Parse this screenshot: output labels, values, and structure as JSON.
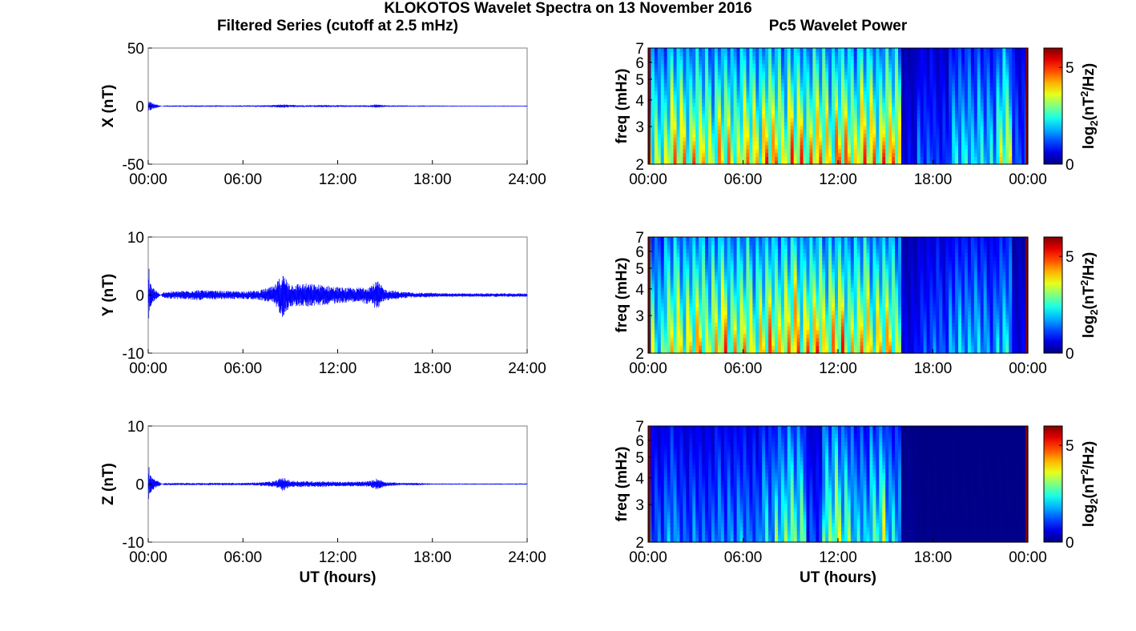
{
  "figure": {
    "title": "KLOKOTOS Wavelet Spectra on 13 November 2016",
    "left_column_title": "Filtered Series (cutoff at 2.5 mHz)",
    "right_column_title": "Pc5 Wavelet Power"
  },
  "colors": {
    "trace": "#0000ff",
    "axes": "#000000",
    "frame": "#7f7f7f",
    "colormap": "jet",
    "colormap_stops": [
      "#00008f",
      "#0000ff",
      "#00ffff",
      "#ffff00",
      "#ff0000",
      "#800000"
    ]
  },
  "chart_data": [
    {
      "type": "line",
      "component": "X",
      "ylabel": "X (nT)",
      "xlabel": "",
      "xlim": [
        0,
        24
      ],
      "ylim": [
        -50,
        50
      ],
      "xticks": [
        0,
        6,
        12,
        18,
        24
      ],
      "xtick_labels": [
        "00:00",
        "06:00",
        "12:00",
        "18:00",
        "24:00"
      ],
      "yticks": [
        -50,
        0,
        50
      ],
      "ytick_labels": [
        "-50",
        "0",
        "50"
      ],
      "grid": false,
      "series": [
        {
          "x": [
            0,
            0.05,
            0.1,
            1,
            2,
            3,
            4,
            5,
            6,
            7,
            8,
            8.5,
            9,
            10,
            11,
            12,
            13,
            14,
            14.5,
            15,
            16,
            17,
            18,
            19,
            20,
            21,
            22,
            23,
            24
          ],
          "y": [
            0,
            4.5,
            -3.5,
            0.5,
            0.6,
            0.6,
            0.6,
            0.6,
            0.6,
            0.7,
            0.9,
            1.5,
            1.0,
            0.8,
            1.0,
            0.8,
            0.7,
            0.8,
            1.5,
            0.7,
            0.6,
            0.5,
            0.5,
            0.4,
            0.4,
            0.4,
            0.4,
            0.4,
            0.4
          ]
        }
      ]
    },
    {
      "type": "heatmap",
      "component": "X",
      "ylabel": "freq (mHz)",
      "xlabel": "",
      "xlim": [
        0,
        24
      ],
      "ylim": [
        2,
        7
      ],
      "yscale": "log",
      "xticks": [
        0,
        6,
        12,
        18,
        24
      ],
      "xtick_labels": [
        "00:00",
        "06:00",
        "12:00",
        "18:00",
        "00:00"
      ],
      "yticks": [
        2,
        3,
        4,
        5,
        6,
        7
      ],
      "ytick_labels": [
        "2",
        "3",
        "4",
        "5",
        "6",
        "7"
      ],
      "colorbar": {
        "label": "log2(nT^2/Hz)",
        "label_base": "log",
        "label_sub": "2",
        "label_rest": "(nT",
        "label_sup": "2",
        "label_end": "/Hz)",
        "ticks": [
          0,
          5
        ],
        "range": [
          0,
          6
        ]
      },
      "power_max_by_hour": [
        4.5,
        5.6,
        5.6,
        5.3,
        5.4,
        5.5,
        5.6,
        6.0,
        6.0,
        5.9,
        6.0,
        6.0,
        6.0,
        6.0,
        5.9,
        6.0,
        1.0,
        2.0,
        1.5,
        3.0,
        3.4,
        3.0,
        4.8,
        2.0
      ]
    },
    {
      "type": "line",
      "component": "Y",
      "ylabel": "Y (nT)",
      "xlabel": "",
      "xlim": [
        0,
        24
      ],
      "ylim": [
        -10,
        10
      ],
      "xticks": [
        0,
        6,
        12,
        18,
        24
      ],
      "xtick_labels": [
        "00:00",
        "06:00",
        "12:00",
        "18:00",
        "24:00"
      ],
      "yticks": [
        -10,
        0,
        10
      ],
      "ytick_labels": [
        "-10",
        "0",
        "10"
      ],
      "grid": false,
      "series": [
        {
          "x": [
            0,
            0.05,
            0.1,
            1,
            2,
            3,
            4,
            5,
            6,
            7,
            8,
            8.5,
            9,
            10,
            11,
            12,
            13,
            14,
            14.5,
            15,
            16,
            17,
            18,
            19,
            20,
            21,
            22,
            23,
            24
          ],
          "y": [
            0,
            5.0,
            -2.0,
            0.6,
            0.7,
            0.9,
            0.8,
            0.7,
            0.7,
            0.8,
            1.6,
            3.8,
            2.0,
            2.0,
            1.8,
            1.4,
            1.2,
            1.6,
            2.5,
            1.0,
            0.6,
            0.4,
            0.4,
            0.3,
            0.3,
            0.3,
            0.3,
            0.3,
            0.3
          ]
        }
      ]
    },
    {
      "type": "heatmap",
      "component": "Y",
      "ylabel": "freq (mHz)",
      "xlabel": "",
      "xlim": [
        0,
        24
      ],
      "ylim": [
        2,
        7
      ],
      "yscale": "log",
      "xticks": [
        0,
        6,
        12,
        18,
        24
      ],
      "xtick_labels": [
        "00:00",
        "06:00",
        "12:00",
        "18:00",
        "00:00"
      ],
      "yticks": [
        2,
        3,
        4,
        5,
        6,
        7
      ],
      "ytick_labels": [
        "2",
        "3",
        "4",
        "5",
        "6",
        "7"
      ],
      "colorbar": {
        "label": "log2(nT^2/Hz)",
        "label_base": "log",
        "label_sub": "2",
        "label_rest": "(nT",
        "label_sup": "2",
        "label_end": "/Hz)",
        "ticks": [
          0,
          5
        ],
        "range": [
          0,
          6
        ]
      },
      "power_max_by_hour": [
        4.0,
        5.2,
        5.4,
        5.5,
        5.6,
        5.5,
        5.4,
        5.6,
        6.0,
        6.0,
        5.9,
        6.0,
        5.6,
        5.7,
        5.6,
        5.4,
        1.0,
        1.8,
        2.0,
        2.6,
        3.0,
        2.4,
        3.0,
        1.0
      ]
    },
    {
      "type": "line",
      "component": "Z",
      "ylabel": "Z (nT)",
      "xlabel": "UT (hours)",
      "xlim": [
        0,
        24
      ],
      "ylim": [
        -10,
        10
      ],
      "xticks": [
        0,
        6,
        12,
        18,
        24
      ],
      "xtick_labels": [
        "00:00",
        "06:00",
        "12:00",
        "18:00",
        "24:00"
      ],
      "yticks": [
        -10,
        0,
        10
      ],
      "ytick_labels": [
        "-10",
        "0",
        "10"
      ],
      "grid": false,
      "series": [
        {
          "x": [
            0,
            0.05,
            0.1,
            1,
            2,
            3,
            4,
            5,
            6,
            7,
            8,
            8.5,
            9,
            10,
            11,
            12,
            13,
            14,
            14.5,
            15,
            16,
            17,
            18,
            19,
            20,
            21,
            22,
            23,
            24
          ],
          "y": [
            0,
            3.2,
            -1.5,
            0.2,
            0.2,
            0.2,
            0.2,
            0.2,
            0.2,
            0.3,
            0.5,
            1.2,
            0.6,
            0.5,
            0.5,
            0.4,
            0.4,
            0.5,
            1.0,
            0.4,
            0.2,
            0.2,
            0.1,
            0.1,
            0.1,
            0.1,
            0.1,
            0.1,
            0.1
          ]
        }
      ]
    },
    {
      "type": "heatmap",
      "component": "Z",
      "ylabel": "freq (mHz)",
      "xlabel": "UT (hours)",
      "xlim": [
        0,
        24
      ],
      "ylim": [
        2,
        7
      ],
      "yscale": "log",
      "xticks": [
        0,
        6,
        12,
        18,
        24
      ],
      "xtick_labels": [
        "00:00",
        "06:00",
        "12:00",
        "18:00",
        "00:00"
      ],
      "yticks": [
        2,
        3,
        4,
        5,
        6,
        7
      ],
      "ytick_labels": [
        "2",
        "3",
        "4",
        "5",
        "6",
        "7"
      ],
      "colorbar": {
        "label": "log2(nT^2/Hz)",
        "label_base": "log",
        "label_sub": "2",
        "label_rest": "(nT",
        "label_sup": "2",
        "label_end": "/Hz)",
        "ticks": [
          0,
          5
        ],
        "range": [
          0,
          6
        ]
      },
      "power_max_by_hour": [
        2.0,
        2.4,
        2.0,
        2.0,
        2.2,
        2.4,
        2.2,
        2.8,
        4.0,
        4.2,
        1.6,
        4.6,
        4.2,
        3.0,
        4.2,
        3.2,
        0.2,
        0.1,
        0.1,
        0.1,
        0.1,
        0.1,
        0.1,
        0.1
      ]
    }
  ]
}
